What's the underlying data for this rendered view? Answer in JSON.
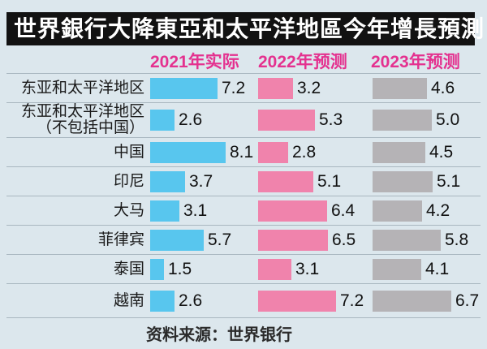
{
  "colors": {
    "background": "#dce7ed",
    "title_bar_bg": "#121212",
    "title_text": "#ffffff",
    "header_text": "#e4318f",
    "series_2021": "#58c6ee",
    "series_2022": "#f083ac",
    "series_2023": "#b5b3b6",
    "divider": "#a9b7c0",
    "value_text": "#111111"
  },
  "chart_data": {
    "type": "bar",
    "title": "世界銀行大降東亞和太平洋地區今年增長預測",
    "source": "资料来源：世界银行",
    "legend_position": "top",
    "orientation": "horizontal",
    "value_unit": "percent_growth",
    "series": [
      {
        "name": "2021年实际",
        "color": "#58c6ee"
      },
      {
        "name": "2022年预测",
        "color": "#f083ac"
      },
      {
        "name": "2023年预测",
        "color": "#b5b3b6"
      }
    ],
    "rows": [
      {
        "label_lines": [
          "东亚和太平洋地区"
        ],
        "values": [
          7.2,
          3.2,
          4.6
        ]
      },
      {
        "label_lines": [
          "东亚和太平洋地区",
          "（不包括中国）"
        ],
        "values": [
          2.6,
          5.3,
          5.0
        ]
      },
      {
        "label_lines": [
          "中国"
        ],
        "values": [
          8.1,
          2.8,
          4.5
        ]
      },
      {
        "label_lines": [
          "印尼"
        ],
        "values": [
          3.7,
          5.1,
          5.1
        ]
      },
      {
        "label_lines": [
          "大马"
        ],
        "values": [
          3.1,
          6.4,
          4.2
        ]
      },
      {
        "label_lines": [
          "菲律宾"
        ],
        "values": [
          5.7,
          6.5,
          5.8
        ]
      },
      {
        "label_lines": [
          "泰国"
        ],
        "values": [
          1.5,
          3.1,
          4.1
        ]
      },
      {
        "label_lines": [
          "越南"
        ],
        "values": [
          2.6,
          7.2,
          6.7
        ]
      }
    ]
  }
}
